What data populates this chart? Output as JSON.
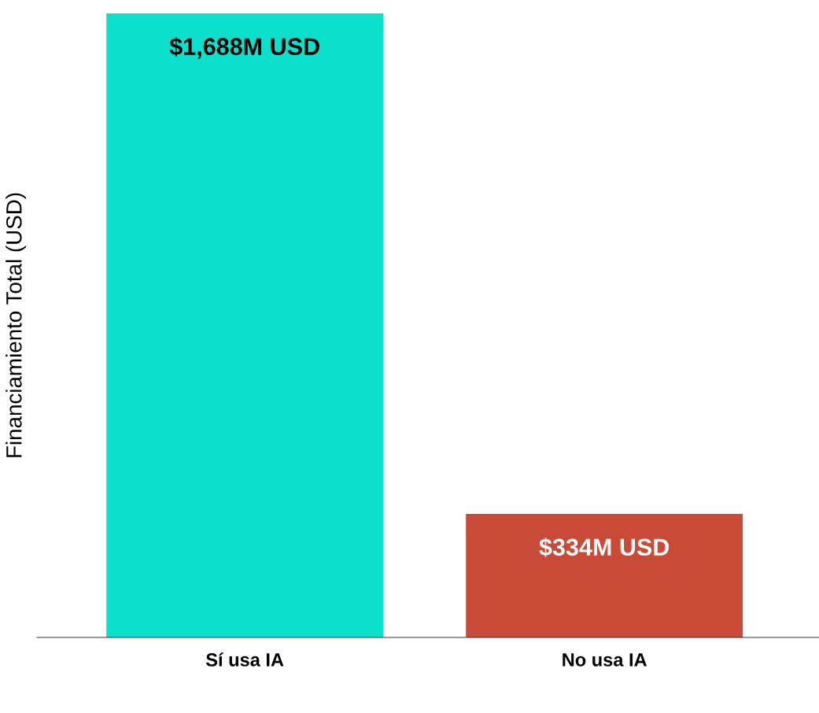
{
  "chart_data": {
    "type": "bar",
    "ylabel": "Financiamiento Total (USD)",
    "categories": [
      "Sí usa IA",
      "No usa IA"
    ],
    "values": [
      1688,
      334
    ],
    "colors": [
      "#0ae0cb",
      "#c94a37"
    ],
    "value_labels": [
      "$1,688M USD",
      "$334M USD"
    ],
    "ylim": [
      0,
      1688
    ],
    "tick_labels": "x",
    "grid": false,
    "legend": false
  }
}
